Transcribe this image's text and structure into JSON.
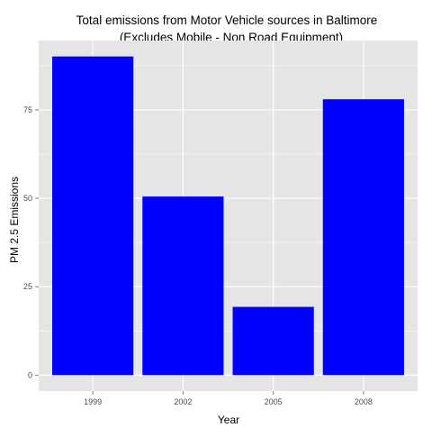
{
  "chart_data": {
    "type": "bar",
    "title_lines": [
      "Total emissions from Motor Vehicle sources in Baltimore",
      "(Excludes Mobile - Non Road Equipment)"
    ],
    "xlabel": "Year",
    "ylabel": "PM 2.5 Emissions",
    "categories": [
      "1999",
      "2002",
      "2005",
      "2008"
    ],
    "values": [
      90.1,
      50.5,
      19.3,
      78.0
    ],
    "y_ticks": [
      0,
      25,
      50,
      75
    ],
    "ylim": [
      -4.5,
      94.6
    ],
    "bar_color": "#0000ff",
    "panel_background": "#e5e5e5",
    "gridline_color": "#ffffff",
    "grid": true,
    "legend": "none"
  }
}
